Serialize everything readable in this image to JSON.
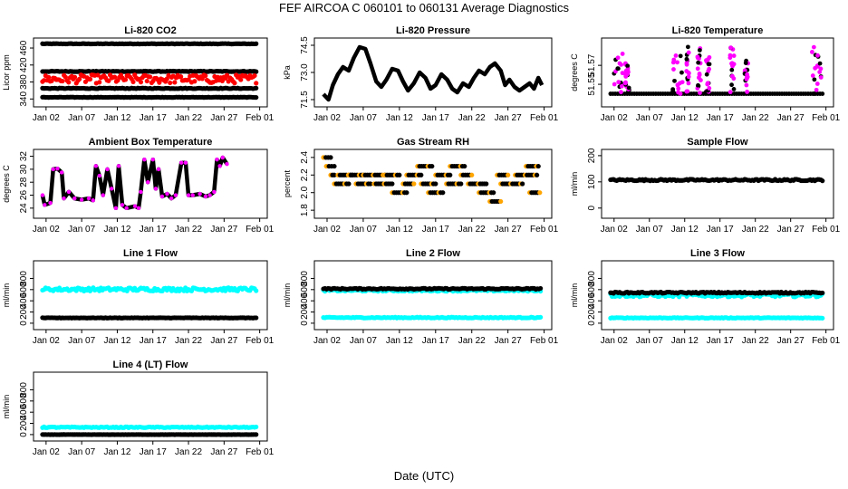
{
  "figure": {
    "title": "FEF   AIRCOA C   060101 to 060131   Average Diagnostics",
    "xlabel": "Date (UTC)"
  },
  "x_ticks": [
    "Jan 02",
    "Jan 07",
    "Jan 12",
    "Jan 17",
    "Jan 22",
    "Jan 27",
    "Feb 01"
  ],
  "colors": {
    "black": "#000000",
    "red": "#ff0000",
    "magenta": "#ff00ff",
    "cyan": "#00ffff",
    "orange": "#ffa500",
    "green": "#00a000",
    "blue": "#0000ff"
  },
  "chart_data": [
    {
      "type": "scatter",
      "title": "Li-820 CO2",
      "ylabel": "Licor ppm",
      "ylim": [
        330,
        475
      ],
      "yticks": [
        "340",
        "380",
        "420",
        "460"
      ],
      "series": [
        {
          "name": "black upper",
          "color": "black",
          "mode": "band",
          "level": 470,
          "noise": 0.6
        },
        {
          "name": "black mid",
          "color": "black",
          "mode": "band",
          "level": 405,
          "noise": 0.8
        },
        {
          "name": "black low",
          "color": "black",
          "mode": "band",
          "level": 365,
          "noise": 0.8
        },
        {
          "name": "black bottom",
          "color": "black",
          "mode": "band",
          "level": 344,
          "noise": 0.5
        },
        {
          "name": "red",
          "color": "red",
          "mode": "band",
          "level": 387,
          "noise": 10
        }
      ]
    },
    {
      "type": "line",
      "title": "Li-820 Pressure",
      "ylabel": "kPa",
      "ylim": [
        71.3,
        74.7
      ],
      "yticks": [
        "71.5",
        "73.0",
        "74.5"
      ],
      "series": [
        {
          "name": "pressure",
          "color": "black",
          "points": [
            [
              0.5,
              71.8
            ],
            [
              1.2,
              71.5
            ],
            [
              1.8,
              72.3
            ],
            [
              2.5,
              72.9
            ],
            [
              3.2,
              73.3
            ],
            [
              4,
              73.1
            ],
            [
              4.7,
              73.8
            ],
            [
              5.5,
              74.4
            ],
            [
              6.3,
              74.3
            ],
            [
              7,
              73.5
            ],
            [
              7.8,
              72.5
            ],
            [
              8.5,
              72.2
            ],
            [
              9.2,
              72.6
            ],
            [
              10,
              73.2
            ],
            [
              10.8,
              73.1
            ],
            [
              11.5,
              72.5
            ],
            [
              12.2,
              72.0
            ],
            [
              13,
              72.4
            ],
            [
              13.8,
              73.0
            ],
            [
              14.6,
              72.7
            ],
            [
              15.3,
              72.1
            ],
            [
              16,
              72.3
            ],
            [
              16.8,
              72.9
            ],
            [
              17.6,
              72.6
            ],
            [
              18.3,
              72.1
            ],
            [
              19,
              71.9
            ],
            [
              19.8,
              72.4
            ],
            [
              20.6,
              72.2
            ],
            [
              21.3,
              72.7
            ],
            [
              22,
              73.1
            ],
            [
              22.8,
              72.9
            ],
            [
              23.5,
              73.3
            ],
            [
              24.2,
              73.5
            ],
            [
              25,
              73.1
            ],
            [
              25.6,
              72.3
            ],
            [
              26.2,
              72.6
            ],
            [
              26.9,
              72.2
            ],
            [
              27.6,
              72.0
            ],
            [
              28.3,
              72.2
            ],
            [
              29,
              72.4
            ],
            [
              29.6,
              72.1
            ],
            [
              30.2,
              72.7
            ],
            [
              30.7,
              72.3
            ]
          ]
        }
      ]
    },
    {
      "type": "scatter",
      "title": "Li-820 Temperature",
      "ylabel": "degrees C",
      "ylim": [
        51.53,
        51.595
      ],
      "yticks": [
        "51.55",
        "51.57"
      ],
      "series": [
        {
          "name": "spikes",
          "color": "magenta",
          "mode": "spikes",
          "base": 51.54,
          "spikes": [
            [
              1.0,
              3.0,
              51.585
            ],
            [
              2.6,
              3.2,
              51.575
            ],
            [
              9.3,
              10.8,
              51.585
            ],
            [
              11.2,
              11.6,
              51.595
            ],
            [
              12.8,
              13.3,
              51.59
            ],
            [
              14.0,
              14.5,
              51.58
            ],
            [
              17.4,
              18.0,
              51.59
            ],
            [
              19.5,
              20.0,
              51.578
            ],
            [
              29.0,
              30.4,
              51.592
            ]
          ]
        }
      ]
    },
    {
      "type": "line",
      "title": "Ambient Box Temperature",
      "ylabel": "degrees C",
      "ylim": [
        23,
        32.5
      ],
      "yticks": [
        "24",
        "26",
        "28",
        "30",
        "32"
      ],
      "series": [
        {
          "name": "ambient",
          "color": "black",
          "points": [
            [
              0.5,
              26
            ],
            [
              0.8,
              24.5
            ],
            [
              1.6,
              24.8
            ],
            [
              2.0,
              30
            ],
            [
              2.6,
              30.1
            ],
            [
              3.2,
              29.5
            ],
            [
              3.5,
              25.5
            ],
            [
              4.2,
              26.5
            ],
            [
              5.0,
              25.5
            ],
            [
              6.0,
              25.3
            ],
            [
              7.0,
              25.5
            ],
            [
              7.6,
              25.2
            ],
            [
              8.0,
              30.5
            ],
            [
              8.5,
              29
            ],
            [
              9.0,
              26
            ],
            [
              9.6,
              30
            ],
            [
              10.2,
              27
            ],
            [
              10.8,
              24
            ],
            [
              11.2,
              30.5
            ],
            [
              11.7,
              24.5
            ],
            [
              12.3,
              24
            ],
            [
              13.5,
              24.3
            ],
            [
              14.0,
              24
            ],
            [
              14.3,
              26.5
            ],
            [
              14.8,
              31.5
            ],
            [
              15.3,
              28
            ],
            [
              16.0,
              31.5
            ],
            [
              16.4,
              27
            ],
            [
              16.8,
              30
            ],
            [
              17.3,
              25.8
            ],
            [
              18.0,
              26.2
            ],
            [
              18.6,
              25.5
            ],
            [
              19.2,
              26
            ],
            [
              20.0,
              31
            ],
            [
              20.6,
              31
            ],
            [
              21.0,
              26
            ],
            [
              21.6,
              26
            ],
            [
              22.6,
              26.2
            ],
            [
              23.4,
              25.8
            ],
            [
              24.0,
              26
            ],
            [
              24.6,
              26.5
            ],
            [
              25.0,
              31.5
            ],
            [
              25.4,
              30.5
            ],
            [
              25.8,
              31.8
            ],
            [
              26.4,
              30.8
            ]
          ]
        }
      ]
    },
    {
      "type": "scatter",
      "title": "Gas Stream RH",
      "ylabel": "percent",
      "ylim": [
        1.75,
        2.45
      ],
      "yticks": [
        "1.8",
        "2.0",
        "2.2",
        "2.4"
      ],
      "series": [
        {
          "name": "rh",
          "color": "black",
          "mode": "steps",
          "segments": [
            [
              0.5,
              1.5,
              2.4
            ],
            [
              0.9,
              2.0,
              2.3
            ],
            [
              1.5,
              2.0,
              2.2
            ],
            [
              2.0,
              4.0,
              2.1
            ],
            [
              2.5,
              4.5,
              2.2
            ],
            [
              4.0,
              6.0,
              2.2
            ],
            [
              5.0,
              7.0,
              2.1
            ],
            [
              6.0,
              9.0,
              2.2
            ],
            [
              7.5,
              10.0,
              2.1
            ],
            [
              9.0,
              11.0,
              2.2
            ],
            [
              10.0,
              12.0,
              2.0
            ],
            [
              11.5,
              13.0,
              2.1
            ],
            [
              12.0,
              14.0,
              2.2
            ],
            [
              13.5,
              15.5,
              2.3
            ],
            [
              14.0,
              16.0,
              2.1
            ],
            [
              15.0,
              17.0,
              2.0
            ],
            [
              16.0,
              18.0,
              2.2
            ],
            [
              17.5,
              19.5,
              2.1
            ],
            [
              18.0,
              20.0,
              2.3
            ],
            [
              19.5,
              21.0,
              2.2
            ],
            [
              20.5,
              23.0,
              2.1
            ],
            [
              22.0,
              24.0,
              2.0
            ],
            [
              23.5,
              25.0,
              1.9
            ],
            [
              24.5,
              26.0,
              2.2
            ],
            [
              25.0,
              28.0,
              2.1
            ],
            [
              27.0,
              30.0,
              2.2
            ],
            [
              28.5,
              30.2,
              2.3
            ],
            [
              29.0,
              30.4,
              2.0
            ]
          ]
        }
      ]
    },
    {
      "type": "scatter",
      "title": "Sample Flow",
      "ylabel": "ml/min",
      "ylim": [
        -25,
        210
      ],
      "yticks": [
        "0",
        "100",
        "200"
      ],
      "series": [
        {
          "name": "sample",
          "color": "black",
          "mode": "band",
          "level": 107,
          "noise": 3
        }
      ]
    },
    {
      "type": "scatter",
      "title": "Line 1 Flow",
      "ylabel": "ml/min",
      "ylim": [
        -50,
        1050
      ],
      "yticks": [
        "0",
        "200",
        "400",
        "600",
        "800"
      ],
      "series": [
        {
          "name": "cyan",
          "color": "cyan",
          "mode": "band",
          "level": 605,
          "noise": 30
        },
        {
          "name": "black",
          "color": "black",
          "mode": "band",
          "level": 95,
          "noise": 4
        }
      ]
    },
    {
      "type": "scatter",
      "title": "Line 2 Flow",
      "ylabel": "ml/min",
      "ylim": [
        -50,
        1050
      ],
      "yticks": [
        "0",
        "200",
        "400",
        "600",
        "800"
      ],
      "series": [
        {
          "name": "cyan lower",
          "color": "cyan",
          "mode": "band",
          "level": 100,
          "noise": 8
        },
        {
          "name": "cyan upper",
          "color": "cyan",
          "mode": "band",
          "level": 585,
          "noise": 15
        },
        {
          "name": "black",
          "color": "black",
          "mode": "band",
          "level": 615,
          "noise": 10
        }
      ]
    },
    {
      "type": "scatter",
      "title": "Line 3 Flow",
      "ylabel": "ml/min",
      "ylim": [
        -50,
        1050
      ],
      "yticks": [
        "0",
        "200",
        "400",
        "600",
        "800"
      ],
      "series": [
        {
          "name": "cyan lower",
          "color": "cyan",
          "mode": "band",
          "level": 95,
          "noise": 6
        },
        {
          "name": "cyan upper",
          "color": "cyan",
          "mode": "band",
          "level": 500,
          "noise": 30
        },
        {
          "name": "black",
          "color": "black",
          "mode": "band",
          "level": 545,
          "noise": 12
        }
      ]
    },
    {
      "type": "scatter",
      "title": "Line 4 (LT) Flow",
      "ylabel": "ml/min",
      "ylim": [
        -50,
        1050
      ],
      "yticks": [
        "0",
        "200",
        "400",
        "600",
        "800"
      ],
      "series": [
        {
          "name": "cyan",
          "color": "cyan",
          "mode": "band",
          "level": 130,
          "noise": 8
        },
        {
          "name": "black",
          "color": "black",
          "mode": "band",
          "level": 0,
          "noise": 2
        }
      ]
    }
  ]
}
